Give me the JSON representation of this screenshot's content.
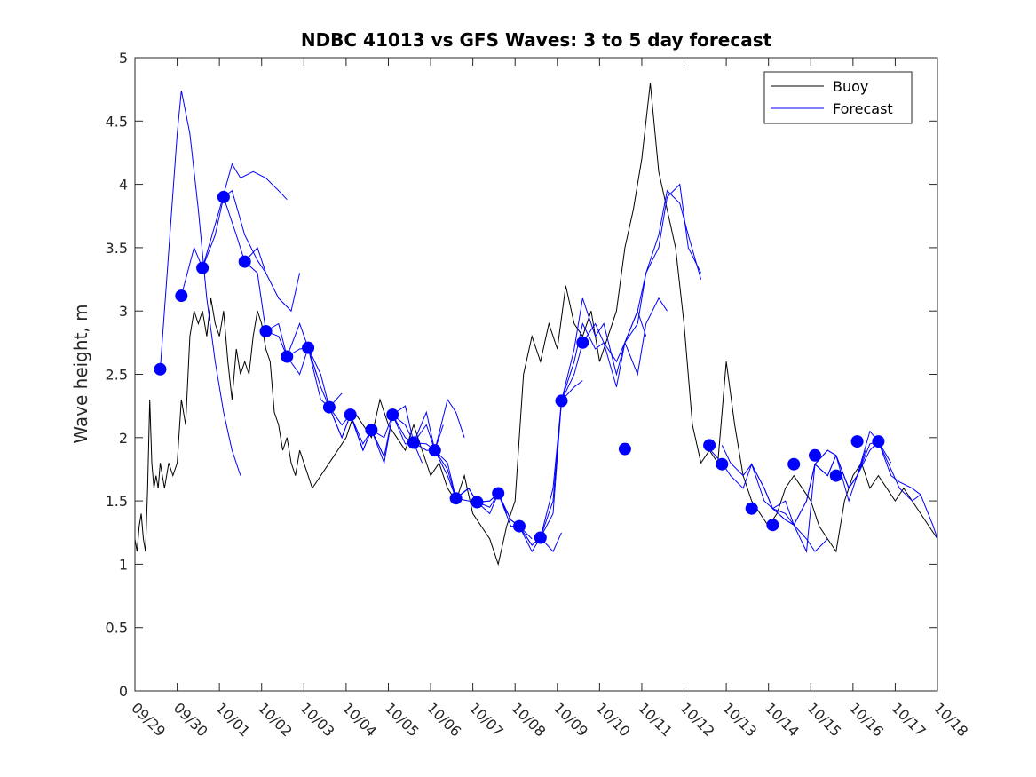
{
  "chart_data": {
    "type": "line",
    "title": "NDBC 41013 vs GFS Waves: 3 to 5 day forecast",
    "xlabel": "",
    "ylabel": "Wave height, m",
    "xlim": [
      0,
      19
    ],
    "ylim": [
      0,
      5
    ],
    "x_unit": "days since 09/29",
    "x_ticks": [
      0,
      1,
      2,
      3,
      4,
      5,
      6,
      7,
      8,
      9,
      10,
      11,
      12,
      13,
      14,
      15,
      16,
      17,
      18,
      19
    ],
    "x_tick_labels": [
      "09/29",
      "09/30",
      "10/01",
      "10/02",
      "10/03",
      "10/04",
      "10/05",
      "10/06",
      "10/07",
      "10/08",
      "10/09",
      "10/10",
      "10/11",
      "10/12",
      "10/13",
      "10/14",
      "10/15",
      "10/16",
      "10/17",
      "10/18"
    ],
    "y_ticks": [
      0,
      0.5,
      1,
      1.5,
      2,
      2.5,
      3,
      3.5,
      4,
      4.5,
      5
    ],
    "y_tick_labels": [
      "0",
      "0.5",
      "1",
      "1.5",
      "2",
      "2.5",
      "3",
      "3.5",
      "4",
      "4.5",
      "5"
    ],
    "legend": {
      "position": "top-right",
      "entries": [
        "Buoy",
        "Forecast"
      ]
    },
    "colors": {
      "buoy": "#000000",
      "forecast": "#0000ff",
      "markers": "#0000ff"
    },
    "series": [
      {
        "name": "Buoy",
        "x": [
          0,
          0.05,
          0.1,
          0.15,
          0.2,
          0.25,
          0.3,
          0.35,
          0.4,
          0.45,
          0.5,
          0.55,
          0.6,
          0.65,
          0.7,
          0.8,
          0.9,
          1.0,
          1.1,
          1.2,
          1.3,
          1.4,
          1.5,
          1.6,
          1.7,
          1.8,
          1.9,
          2.0,
          2.1,
          2.2,
          2.3,
          2.4,
          2.5,
          2.6,
          2.7,
          2.8,
          2.9,
          3.0,
          3.1,
          3.2,
          3.3,
          3.4,
          3.5,
          3.6,
          3.7,
          3.8,
          3.9,
          4.0,
          4.2,
          4.4,
          4.6,
          4.8,
          5.0,
          5.2,
          5.4,
          5.6,
          5.8,
          6.0,
          6.2,
          6.4,
          6.6,
          6.8,
          7.0,
          7.2,
          7.4,
          7.6,
          7.8,
          8.0,
          8.2,
          8.4,
          8.6,
          8.8,
          9.0,
          9.2,
          9.4,
          9.6,
          9.8,
          10.0,
          10.2,
          10.4,
          10.6,
          10.8,
          11.0,
          11.2,
          11.4,
          11.6,
          11.8,
          12.0,
          12.2,
          12.4,
          12.6,
          12.8,
          13.0,
          13.2,
          13.4,
          13.6,
          13.8,
          14.0,
          14.2,
          14.4,
          14.6,
          14.8,
          15.0,
          15.2,
          15.4,
          15.6,
          15.8,
          16.0,
          16.2,
          16.4,
          16.6,
          16.8,
          17.0,
          17.2,
          17.4,
          17.6,
          17.8,
          18.0,
          18.2,
          18.4,
          18.6,
          18.8,
          19.0
        ],
        "values": [
          1.2,
          1.1,
          1.3,
          1.4,
          1.2,
          1.1,
          1.6,
          2.3,
          1.8,
          1.6,
          1.7,
          1.6,
          1.8,
          1.7,
          1.6,
          1.8,
          1.7,
          1.8,
          2.3,
          2.1,
          2.8,
          3.0,
          2.9,
          3.0,
          2.8,
          3.1,
          2.9,
          2.8,
          3.0,
          2.6,
          2.3,
          2.7,
          2.5,
          2.6,
          2.5,
          2.8,
          3.0,
          2.9,
          2.7,
          2.6,
          2.2,
          2.1,
          1.9,
          2.0,
          1.8,
          1.7,
          1.9,
          1.8,
          1.6,
          1.7,
          1.8,
          1.9,
          2.0,
          2.2,
          2.1,
          2.0,
          2.3,
          2.1,
          2.0,
          1.9,
          2.1,
          1.9,
          1.7,
          1.8,
          1.6,
          1.5,
          1.7,
          1.4,
          1.3,
          1.2,
          1.0,
          1.3,
          1.5,
          2.5,
          2.8,
          2.6,
          2.9,
          2.7,
          3.2,
          2.9,
          2.8,
          3.0,
          2.6,
          2.8,
          3.0,
          3.5,
          3.8,
          4.2,
          4.8,
          4.1,
          3.8,
          3.5,
          2.9,
          2.1,
          1.8,
          1.9,
          1.8,
          2.6,
          2.1,
          1.7,
          1.5,
          1.4,
          1.3,
          1.4,
          1.6,
          1.7,
          1.6,
          1.5,
          1.3,
          1.2,
          1.1,
          1.5,
          1.7,
          1.8,
          1.6,
          1.7,
          1.6,
          1.5,
          1.6,
          1.5,
          1.4,
          1.3,
          1.2
        ]
      },
      {
        "name": "Forecast",
        "markers": {
          "x": [
            0.6,
            1.1,
            1.6,
            2.1,
            2.6,
            3.1,
            3.6,
            4.1,
            4.6,
            5.1,
            5.6,
            6.1,
            6.6,
            7.1,
            7.6,
            8.1,
            8.6,
            9.1,
            9.6,
            10.1,
            10.6,
            11.6,
            13.6,
            13.9,
            14.6,
            15.1,
            15.6,
            16.1,
            16.6,
            17.1,
            17.6
          ],
          "values": [
            2.54,
            3.12,
            3.34,
            3.9,
            3.39,
            2.84,
            2.64,
            2.71,
            2.24,
            2.18,
            2.06,
            2.18,
            1.96,
            1.9,
            1.52,
            1.49,
            1.56,
            1.3,
            1.21,
            2.29,
            2.75,
            1.91,
            1.94,
            1.79,
            1.44,
            1.31,
            1.79,
            1.86,
            1.7,
            1.97,
            1.97
          ]
        },
        "runs": [
          {
            "x": [
              0.6,
              1.0,
              1.1,
              1.3,
              1.5,
              1.7,
              1.9,
              2.1,
              2.3,
              2.5
            ],
            "values": [
              2.54,
              4.4,
              4.74,
              4.4,
              3.8,
              3.1,
              2.6,
              2.2,
              1.9,
              1.7
            ]
          },
          {
            "x": [
              1.1,
              1.4,
              1.6,
              1.9,
              2.1,
              2.3,
              2.6,
              2.9,
              3.1
            ],
            "values": [
              3.12,
              3.5,
              3.34,
              3.6,
              3.9,
              3.95,
              3.6,
              3.4,
              3.3
            ]
          },
          {
            "x": [
              1.6,
              2.0,
              2.3,
              2.5,
              2.8,
              3.1,
              3.4,
              3.6
            ],
            "values": [
              3.34,
              3.8,
              4.16,
              4.05,
              4.1,
              4.05,
              3.95,
              3.88
            ]
          },
          {
            "x": [
              2.1,
              2.4,
              2.6,
              2.9,
              3.1,
              3.4,
              3.7,
              3.9
            ],
            "values": [
              3.9,
              3.6,
              3.39,
              3.5,
              3.3,
              3.1,
              3.0,
              3.3
            ]
          },
          {
            "x": [
              2.6,
              2.9,
              3.1,
              3.4,
              3.6,
              3.9,
              4.1,
              4.3
            ],
            "values": [
              3.39,
              3.3,
              2.84,
              2.9,
              2.64,
              2.9,
              2.71,
              2.5
            ]
          },
          {
            "x": [
              3.1,
              3.4,
              3.6,
              3.9,
              4.1,
              4.4,
              4.6,
              4.9
            ],
            "values": [
              2.84,
              2.8,
              2.64,
              2.5,
              2.71,
              2.4,
              2.24,
              2.35
            ]
          },
          {
            "x": [
              3.6,
              3.9,
              4.1,
              4.4,
              4.6,
              4.9,
              5.1,
              5.4
            ],
            "values": [
              2.64,
              2.7,
              2.71,
              2.3,
              2.24,
              2.0,
              2.18,
              1.9
            ]
          },
          {
            "x": [
              4.1,
              4.4,
              4.6,
              4.9,
              5.1,
              5.4,
              5.6,
              5.9
            ],
            "values": [
              2.71,
              2.5,
              2.24,
              2.1,
              2.18,
              1.95,
              2.06,
              1.85
            ]
          },
          {
            "x": [
              4.6,
              4.9,
              5.1,
              5.4,
              5.6,
              5.9,
              6.1,
              6.4,
              6.6,
              6.8
            ],
            "values": [
              2.24,
              2.0,
              2.18,
              1.9,
              2.06,
              1.8,
              2.18,
              1.95,
              1.96,
              1.8
            ]
          },
          {
            "x": [
              5.1,
              5.4,
              5.6,
              5.9,
              6.1,
              6.4,
              6.6,
              6.9,
              7.1,
              7.3
            ],
            "values": [
              2.18,
              1.9,
              2.06,
              2.0,
              2.18,
              2.1,
              1.96,
              2.2,
              1.9,
              2.1
            ]
          },
          {
            "x": [
              5.6,
              5.9,
              6.1,
              6.4,
              6.6,
              6.9,
              7.1,
              7.4,
              7.6,
              7.8
            ],
            "values": [
              2.06,
              1.85,
              2.18,
              2.0,
              1.96,
              2.1,
              1.9,
              2.3,
              2.2,
              2.0
            ]
          },
          {
            "x": [
              6.1,
              6.4,
              6.6,
              6.9,
              7.1,
              7.4,
              7.6,
              7.9,
              8.1,
              8.4,
              8.6,
              8.8
            ],
            "values": [
              2.18,
              2.25,
              1.96,
              1.95,
              1.9,
              1.8,
              1.52,
              1.6,
              1.49,
              1.5,
              1.56,
              1.4
            ]
          },
          {
            "x": [
              6.6,
              6.9,
              7.1,
              7.4,
              7.6,
              7.9,
              8.1,
              8.4,
              8.6,
              8.9,
              9.1,
              9.4
            ],
            "values": [
              1.96,
              1.9,
              1.9,
              1.75,
              1.52,
              1.6,
              1.49,
              1.5,
              1.56,
              1.35,
              1.3,
              1.2
            ]
          },
          {
            "x": [
              7.1,
              7.4,
              7.6,
              7.9,
              8.1,
              8.4,
              8.6,
              8.9,
              9.1,
              9.4,
              9.6,
              9.9,
              10.1
            ],
            "values": [
              1.9,
              1.7,
              1.52,
              1.5,
              1.49,
              1.45,
              1.56,
              1.35,
              1.3,
              1.15,
              1.21,
              1.1,
              1.25
            ]
          },
          {
            "x": [
              7.6,
              7.9,
              8.1,
              8.4,
              8.6,
              8.9,
              9.1,
              9.4,
              9.6,
              9.9,
              10.1,
              10.4,
              10.6
            ],
            "values": [
              1.52,
              1.6,
              1.49,
              1.4,
              1.56,
              1.3,
              1.3,
              1.15,
              1.21,
              1.5,
              2.29,
              2.4,
              2.45
            ]
          },
          {
            "x": [
              9.1,
              9.4,
              9.6,
              9.9,
              10.1,
              10.4,
              10.6,
              10.9,
              11.1,
              11.4,
              11.6,
              11.9,
              12.1
            ],
            "values": [
              1.3,
              1.1,
              1.21,
              1.6,
              2.29,
              2.7,
              3.1,
              2.8,
              2.9,
              2.5,
              2.75,
              3.0,
              2.8
            ]
          },
          {
            "x": [
              9.6,
              9.9,
              10.1,
              10.4,
              10.6,
              10.9,
              11.1,
              11.4,
              11.6,
              11.9,
              12.1,
              12.4,
              12.6
            ],
            "values": [
              1.21,
              1.4,
              2.29,
              2.6,
              2.9,
              2.7,
              2.75,
              2.4,
              2.75,
              2.5,
              2.9,
              3.1,
              3.0
            ]
          },
          {
            "x": [
              10.1,
              10.4,
              10.6,
              10.9,
              11.1,
              11.4,
              11.6,
              11.9,
              12.1,
              12.4,
              12.6,
              12.9,
              13.1,
              13.4
            ],
            "values": [
              2.29,
              2.5,
              2.75,
              2.9,
              2.75,
              2.6,
              2.75,
              2.9,
              3.3,
              3.5,
              3.9,
              4.0,
              3.5,
              3.3
            ]
          },
          {
            "x": [
              11.6,
              11.9,
              12.1,
              12.4,
              12.6,
              12.9,
              13.1,
              13.4
            ],
            "values": [
              2.75,
              3.0,
              3.3,
              3.6,
              3.95,
              3.85,
              3.6,
              3.25
            ]
          },
          {
            "x": [
              13.6,
              13.9,
              14.1,
              14.4,
              14.6,
              14.9,
              15.1,
              15.4,
              15.6,
              15.9,
              16.1,
              16.4
            ],
            "values": [
              1.91,
              1.8,
              1.7,
              1.6,
              1.79,
              1.5,
              1.44,
              1.35,
              1.31,
              1.2,
              1.1,
              1.2
            ]
          },
          {
            "x": [
              13.9,
              14.1,
              14.4,
              14.6,
              14.9,
              15.1,
              15.4,
              15.6,
              15.9,
              16.1,
              16.4,
              16.6
            ],
            "values": [
              1.94,
              1.8,
              1.7,
              1.79,
              1.6,
              1.44,
              1.4,
              1.31,
              1.5,
              1.79,
              1.7,
              1.86
            ]
          },
          {
            "x": [
              14.6,
              14.9,
              15.1,
              15.4,
              15.6,
              15.9,
              16.1,
              16.4,
              16.6,
              16.9,
              17.1,
              17.3
            ],
            "values": [
              1.79,
              1.6,
              1.44,
              1.35,
              1.31,
              1.5,
              1.79,
              1.7,
              1.86,
              1.6,
              1.7,
              1.9
            ]
          },
          {
            "x": [
              15.1,
              15.4,
              15.6,
              15.9,
              16.1,
              16.4,
              16.6,
              16.9,
              17.1,
              17.4,
              17.6,
              17.9
            ],
            "values": [
              1.44,
              1.5,
              1.31,
              1.1,
              1.79,
              1.9,
              1.86,
              1.5,
              1.7,
              1.9,
              1.97,
              1.8
            ]
          },
          {
            "x": [
              16.1,
              16.4,
              16.6,
              16.9,
              17.1,
              17.4,
              17.6,
              17.9,
              18.1,
              18.4,
              18.6,
              18.9,
              19.0
            ],
            "values": [
              1.79,
              1.9,
              1.86,
              1.6,
              1.7,
              1.95,
              1.97,
              1.7,
              1.65,
              1.6,
              1.55,
              1.3,
              1.2
            ]
          },
          {
            "x": [
              16.6,
              16.9,
              17.1,
              17.4,
              17.6,
              17.9,
              18.1,
              18.4,
              18.6
            ],
            "values": [
              1.86,
              1.6,
              1.7,
              2.05,
              1.97,
              1.75,
              1.6,
              1.5,
              1.55
            ]
          }
        ]
      }
    ]
  }
}
